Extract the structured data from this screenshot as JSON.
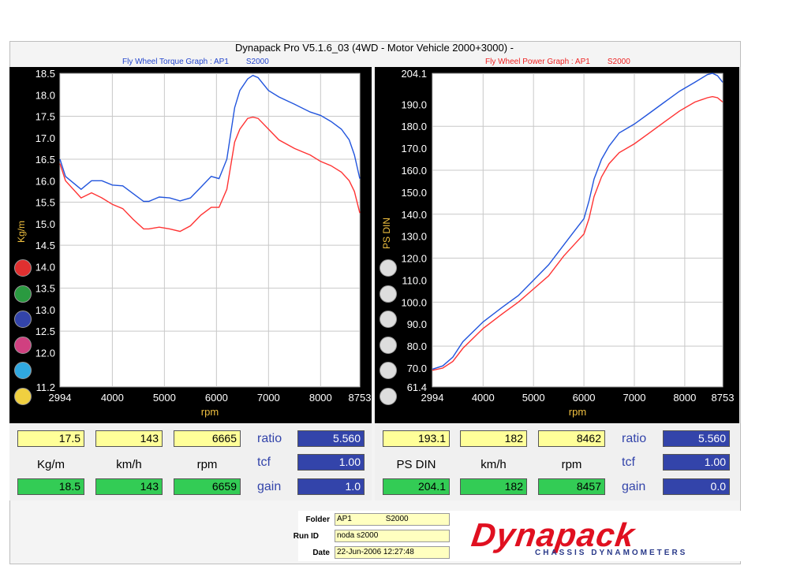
{
  "header": {
    "title": "Dynapack Pro V5.1.6_03 (4WD - Motor Vehicle 2000+3000) -",
    "left_subtitle": "Fly Wheel Torque Graph : AP1",
    "left_subtitle_car": "S2000",
    "right_subtitle": "Fly Wheel Power Graph : AP1",
    "right_subtitle_car": "S2000"
  },
  "colors": {
    "blue_line": "#2255dd",
    "red_line": "#ff3333",
    "grid": "#c8c8c8",
    "axis_text": "#ffffff",
    "xlabel": "#f0c040"
  },
  "chart_data": [
    {
      "type": "line",
      "title": "Fly Wheel Torque Graph : AP1   S2000",
      "xlabel": "rpm",
      "ylabel": "Kg/m",
      "xlim": [
        2994,
        8753
      ],
      "ylim": [
        11.2,
        18.5
      ],
      "x_ticks": [
        "2994",
        "4000",
        "5000",
        "6000",
        "7000",
        "8000",
        "8753"
      ],
      "y_ticks": [
        "11.2",
        "12.0",
        "12.5",
        "13.0",
        "13.5",
        "14.0",
        "14.5",
        "15.0",
        "15.5",
        "16.0",
        "16.5",
        "17.0",
        "17.5",
        "18.0",
        "18.5"
      ],
      "grid": true,
      "series": [
        {
          "color": "#2255dd",
          "points": [
            [
              2994,
              16.5
            ],
            [
              3100,
              16.1
            ],
            [
              3400,
              15.8
            ],
            [
              3600,
              16.0
            ],
            [
              3800,
              16.0
            ],
            [
              4000,
              15.9
            ],
            [
              4200,
              15.88
            ],
            [
              4400,
              15.7
            ],
            [
              4600,
              15.52
            ],
            [
              4700,
              15.52
            ],
            [
              4900,
              15.62
            ],
            [
              5100,
              15.6
            ],
            [
              5300,
              15.53
            ],
            [
              5500,
              15.6
            ],
            [
              5700,
              15.85
            ],
            [
              5900,
              16.1
            ],
            [
              6050,
              16.05
            ],
            [
              6200,
              16.5
            ],
            [
              6350,
              17.7
            ],
            [
              6450,
              18.1
            ],
            [
              6600,
              18.37
            ],
            [
              6700,
              18.45
            ],
            [
              6800,
              18.4
            ],
            [
              7000,
              18.1
            ],
            [
              7200,
              17.95
            ],
            [
              7500,
              17.78
            ],
            [
              7800,
              17.6
            ],
            [
              8000,
              17.52
            ],
            [
              8200,
              17.38
            ],
            [
              8400,
              17.2
            ],
            [
              8550,
              16.95
            ],
            [
              8650,
              16.6
            ],
            [
              8753,
              16.05
            ]
          ]
        },
        {
          "color": "#ff3333",
          "points": [
            [
              2994,
              16.4
            ],
            [
              3100,
              16.0
            ],
            [
              3400,
              15.6
            ],
            [
              3600,
              15.72
            ],
            [
              3800,
              15.6
            ],
            [
              4000,
              15.45
            ],
            [
              4200,
              15.35
            ],
            [
              4400,
              15.1
            ],
            [
              4600,
              14.88
            ],
            [
              4700,
              14.88
            ],
            [
              4900,
              14.92
            ],
            [
              5100,
              14.88
            ],
            [
              5300,
              14.82
            ],
            [
              5500,
              14.95
            ],
            [
              5700,
              15.2
            ],
            [
              5900,
              15.38
            ],
            [
              6050,
              15.38
            ],
            [
              6200,
              15.8
            ],
            [
              6350,
              16.9
            ],
            [
              6450,
              17.2
            ],
            [
              6600,
              17.45
            ],
            [
              6700,
              17.48
            ],
            [
              6800,
              17.45
            ],
            [
              7000,
              17.2
            ],
            [
              7200,
              16.95
            ],
            [
              7500,
              16.75
            ],
            [
              7800,
              16.6
            ],
            [
              8000,
              16.45
            ],
            [
              8200,
              16.35
            ],
            [
              8400,
              16.2
            ],
            [
              8550,
              16.0
            ],
            [
              8650,
              15.75
            ],
            [
              8753,
              15.25
            ]
          ]
        }
      ]
    },
    {
      "type": "line",
      "title": "Fly Wheel Power Graph : AP1   S2000",
      "xlabel": "rpm",
      "ylabel": "PS DIN",
      "xlim": [
        2994,
        8753
      ],
      "ylim": [
        61.4,
        204.1
      ],
      "x_ticks": [
        "2994",
        "4000",
        "5000",
        "6000",
        "7000",
        "8000",
        "8753"
      ],
      "y_ticks": [
        "61.4",
        "70.0",
        "80.0",
        "90.0",
        "100.0",
        "110.0",
        "120.0",
        "130.0",
        "140.0",
        "150.0",
        "160.0",
        "170.0",
        "180.0",
        "190.0",
        "204.1"
      ],
      "grid": true,
      "series": [
        {
          "color": "#2255dd",
          "points": [
            [
              2994,
              69.5
            ],
            [
              3200,
              71
            ],
            [
              3400,
              75
            ],
            [
              3600,
              82
            ],
            [
              4000,
              91
            ],
            [
              4400,
              98
            ],
            [
              4700,
              103
            ],
            [
              5000,
              110
            ],
            [
              5300,
              117
            ],
            [
              5600,
              126
            ],
            [
              5800,
              132
            ],
            [
              6000,
              138
            ],
            [
              6100,
              146
            ],
            [
              6200,
              156
            ],
            [
              6350,
              165
            ],
            [
              6500,
              171
            ],
            [
              6700,
              177
            ],
            [
              7000,
              181
            ],
            [
              7300,
              186
            ],
            [
              7600,
              191
            ],
            [
              7900,
              196
            ],
            [
              8200,
              200
            ],
            [
              8450,
              203.5
            ],
            [
              8550,
              204.1
            ],
            [
              8650,
              203
            ],
            [
              8753,
              200
            ]
          ]
        },
        {
          "color": "#ff3333",
          "points": [
            [
              2994,
              69
            ],
            [
              3200,
              70
            ],
            [
              3400,
              73
            ],
            [
              3600,
              79
            ],
            [
              4000,
              88
            ],
            [
              4400,
              95
            ],
            [
              4700,
              100
            ],
            [
              5000,
              106
            ],
            [
              5300,
              112
            ],
            [
              5600,
              121
            ],
            [
              5800,
              126
            ],
            [
              6000,
              131
            ],
            [
              6100,
              138
            ],
            [
              6200,
              148
            ],
            [
              6350,
              157
            ],
            [
              6500,
              163
            ],
            [
              6700,
              168
            ],
            [
              7000,
              172
            ],
            [
              7300,
              177
            ],
            [
              7600,
              182
            ],
            [
              7900,
              187
            ],
            [
              8200,
              191
            ],
            [
              8450,
              193
            ],
            [
              8550,
              193.5
            ],
            [
              8650,
              193
            ],
            [
              8753,
              191
            ]
          ]
        }
      ]
    }
  ],
  "readout_left": {
    "row1": [
      "17.5",
      "143",
      "6665"
    ],
    "labels": [
      "Kg/m",
      "km/h",
      "rpm"
    ],
    "row3": [
      "18.5",
      "143",
      "6659"
    ],
    "params": [
      {
        "name": "ratio",
        "value": "5.560"
      },
      {
        "name": "tcf",
        "value": "1.00"
      },
      {
        "name": "gain",
        "value": "1.0"
      }
    ]
  },
  "readout_right": {
    "row1": [
      "193.1",
      "182",
      "8462"
    ],
    "labels": [
      "PS DIN",
      "km/h",
      "rpm"
    ],
    "row3": [
      "204.1",
      "182",
      "8457"
    ],
    "params": [
      {
        "name": "ratio",
        "value": "5.560"
      },
      {
        "name": "tcf",
        "value": "1.00"
      },
      {
        "name": "gain",
        "value": "0.0"
      }
    ]
  },
  "footer": {
    "folder_label": "Folder",
    "folder_value": "AP1",
    "folder_value2": "S2000",
    "runid_label": "Run ID",
    "runid_value": "noda s2000",
    "date_label": "Date",
    "date_value": "22-Jun-2006  12:27:48",
    "logo_text": "Dynapack",
    "logo_sub": "CHASSIS DYNAMOMETERS"
  },
  "swatches_left": [
    "#e03030",
    "#2a9a40",
    "#3344aa",
    "#d04080",
    "#30a8e0",
    "#f0d040"
  ],
  "swatches_right": [
    "#dddddd",
    "#dddddd",
    "#dddddd",
    "#dddddd",
    "#dddddd",
    "#dddddd"
  ]
}
